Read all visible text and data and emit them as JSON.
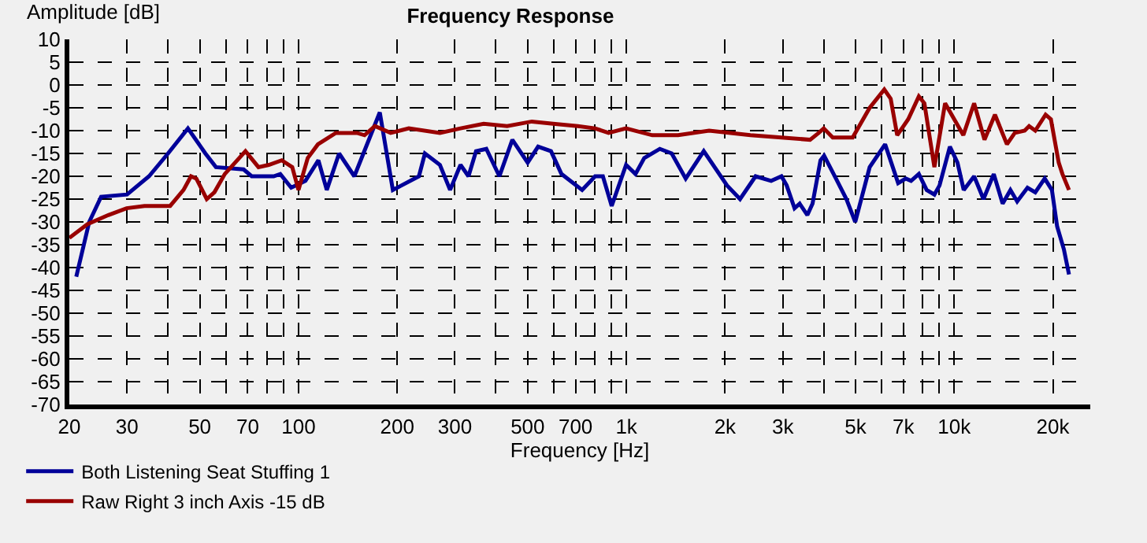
{
  "chart_data": {
    "type": "line",
    "title": "Frequency Response",
    "xlabel": "Frequency [Hz]",
    "ylabel": "Amplitude [dB]",
    "log": "x",
    "grid": true,
    "legend": "bottom left",
    "marker": "none",
    "line_style": "solid",
    "xlim": [
      20,
      26000
    ],
    "xticks": [
      20,
      30,
      {
        "value": 40,
        "label": null
      },
      50,
      {
        "value": 60,
        "label": null
      },
      70,
      {
        "value": 80,
        "label": null
      },
      {
        "value": 90,
        "label": null
      },
      100,
      200,
      300,
      {
        "value": 400,
        "label": null
      },
      500,
      {
        "value": 600,
        "label": null
      },
      700,
      {
        "value": 800,
        "label": null
      },
      {
        "value": 900,
        "label": null
      },
      {
        "value": 1000,
        "label": "1k"
      },
      {
        "value": 2000,
        "label": "2k"
      },
      {
        "value": 3000,
        "label": "3k"
      },
      {
        "value": 4000,
        "label": null
      },
      {
        "value": 5000,
        "label": "5k"
      },
      {
        "value": 6000,
        "label": null
      },
      {
        "value": 7000,
        "label": "7k"
      },
      {
        "value": 8000,
        "label": null
      },
      {
        "value": 9000,
        "label": null
      },
      {
        "value": 10000,
        "label": "10k"
      },
      {
        "value": 20000,
        "label": "20k"
      }
    ],
    "ylim": [
      -70,
      10
    ],
    "yticks": [
      -70,
      -65,
      -60,
      -55,
      -50,
      -45,
      -40,
      -35,
      -30,
      -25,
      -20,
      -15,
      -10,
      -5,
      0,
      5,
      10
    ],
    "series": [
      {
        "name": "Both Listening Seat Stuffing 1",
        "color": "#000099",
        "x": [
          21,
          23,
          25,
          30,
          35,
          40,
          46,
          52,
          56,
          68,
          72,
          84,
          88,
          95,
          105,
          115,
          122,
          133,
          148,
          177,
          194,
          233,
          243,
          270,
          290,
          312,
          330,
          348,
          374,
          410,
          449,
          500,
          538,
          589,
          634,
          733,
          803,
          848,
          902,
          998,
          1066,
          1134,
          1265,
          1375,
          1517,
          1722,
          2028,
          2222,
          2478,
          2765,
          2972,
          3083,
          3258,
          3378,
          3565,
          3697,
          3909,
          4010,
          4358,
          4690,
          4990,
          5523,
          6155,
          6745,
          7117,
          7385,
          7800,
          8240,
          8700,
          9020,
          9700,
          10230,
          10690,
          11500,
          12280,
          13200,
          14050,
          14840,
          15560,
          16730,
          17670,
          18880,
          19860,
          20600,
          21600,
          22390
        ],
        "values": [
          -42,
          -30,
          -24.5,
          -24,
          -20,
          -15,
          -9.5,
          -15,
          -18,
          -18.5,
          -20,
          -20,
          -19.5,
          -22.5,
          -21,
          -16.5,
          -23,
          -15,
          -20,
          -6,
          -23,
          -20,
          -15,
          -17.5,
          -23,
          -17.5,
          -20,
          -14.5,
          -14,
          -20,
          -12,
          -17,
          -13.5,
          -14.5,
          -19.5,
          -23,
          -20,
          -20,
          -26.5,
          -17.5,
          -19.5,
          -16,
          -14,
          -15,
          -20.5,
          -14.5,
          -22,
          -25,
          -20,
          -21,
          -20,
          -22,
          -27,
          -26,
          -28.5,
          -26,
          -16.5,
          -15.5,
          -20.5,
          -25,
          -30,
          -18,
          -13,
          -21.5,
          -20.5,
          -21,
          -19.5,
          -23,
          -24,
          -22,
          -13.5,
          -17,
          -23,
          -20,
          -25,
          -19.5,
          -26,
          -23,
          -25.5,
          -22.5,
          -23.5,
          -20.5,
          -23,
          -31,
          -36,
          -41.5
        ]
      },
      {
        "name": "Raw Right 3 inch Axis -15 dB",
        "color": "#990000",
        "x": [
          20,
          22.7,
          26.3,
          29.9,
          33.9,
          40.6,
          44.6,
          47,
          48.8,
          52.5,
          55.4,
          59.6,
          68.9,
          75.5,
          81.2,
          88.9,
          95.7,
          100,
          106.7,
          114.6,
          130,
          150.7,
          159,
          171,
          191,
          217,
          270,
          312,
          367,
          433,
          515,
          598,
          711,
          803,
          883,
          997,
          1200,
          1438,
          1788,
          2390,
          2970,
          3633,
          3860,
          4000,
          4260,
          4900,
          5523,
          6120,
          6400,
          6700,
          7240,
          7800,
          8110,
          8700,
          9380,
          10660,
          11500,
          12370,
          13310,
          14480,
          15300,
          16400,
          16920,
          17670,
          19000,
          19720,
          20830,
          21380,
          22390
        ],
        "values": [
          -33.5,
          -30.5,
          -28.5,
          -27,
          -26.5,
          -26.5,
          -23,
          -20,
          -20.5,
          -25,
          -23.5,
          -19.5,
          -14.5,
          -18,
          -17.5,
          -16.5,
          -18,
          -23,
          -16,
          -13,
          -10.5,
          -10.5,
          -11,
          -9,
          -10.5,
          -9.5,
          -10.5,
          -9.5,
          -8.5,
          -9,
          -8,
          -8.5,
          -9,
          -9.5,
          -10.5,
          -9.5,
          -11,
          -11,
          -10,
          -11,
          -11.5,
          -12,
          -10.5,
          -9.5,
          -11.5,
          -11.5,
          -5,
          -1,
          -3,
          -11,
          -7.5,
          -2.5,
          -4,
          -18,
          -4,
          -11,
          -4,
          -12,
          -6.5,
          -13,
          -10.5,
          -10,
          -9,
          -10,
          -6.5,
          -7.5,
          -17,
          -19.5,
          -23
        ]
      }
    ]
  }
}
